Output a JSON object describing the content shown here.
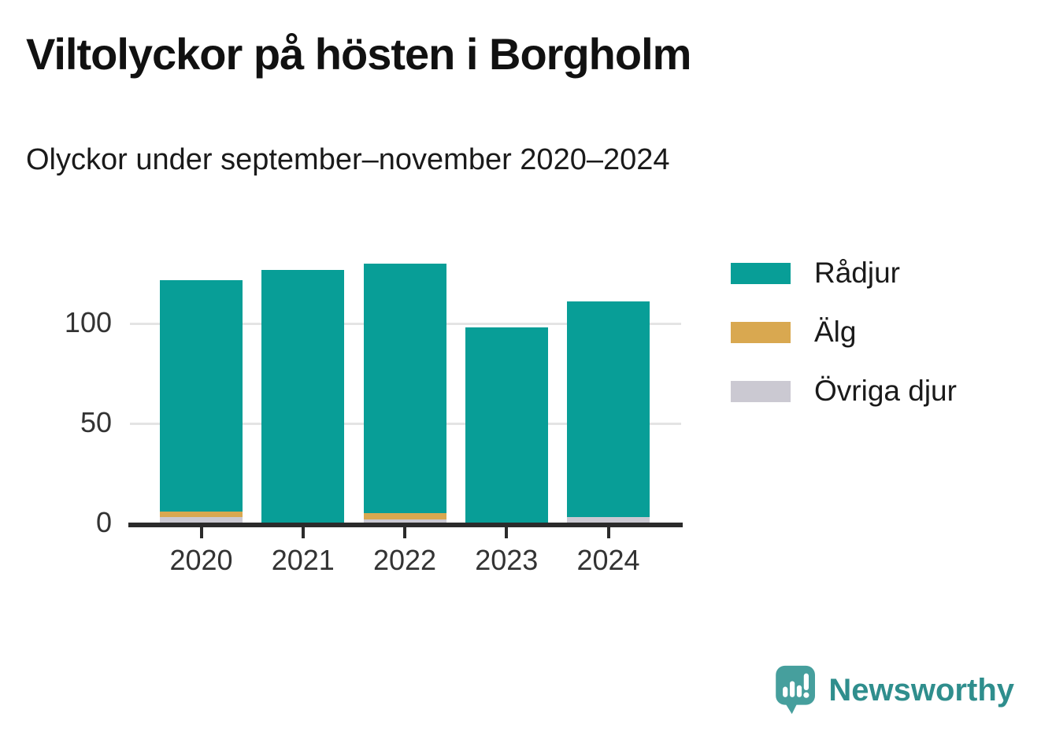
{
  "header": {
    "title": "Viltolyckor på hösten i Borgholm",
    "subtitle": "Olyckor under september–november 2020–2024"
  },
  "chart_data": {
    "type": "bar",
    "stacked": true,
    "title": "Viltolyckor på hösten i Borgholm",
    "subtitle": "Olyckor under september–november 2020–2024",
    "categories": [
      "2020",
      "2021",
      "2022",
      "2023",
      "2024"
    ],
    "series": [
      {
        "name": "Rådjur",
        "color": "#089e97",
        "values": [
          116,
          127,
          125,
          98,
          108
        ]
      },
      {
        "name": "Älg",
        "color": "#d9a850",
        "values": [
          3,
          0,
          3,
          0,
          0
        ]
      },
      {
        "name": "Övriga djur",
        "color": "#cbc9d2",
        "values": [
          3,
          0,
          2,
          0,
          3
        ]
      }
    ],
    "totals": [
      122,
      127,
      130,
      98,
      111
    ],
    "stack_order_bottom_to_top": [
      "Övriga djur",
      "Älg",
      "Rådjur"
    ],
    "yticks": [
      0,
      50,
      100
    ],
    "ylim": [
      0,
      136
    ],
    "xlabel": "",
    "ylabel": "",
    "grid": "horizontal",
    "legend_position": "right",
    "colors": {
      "axis": "#2b2b2b",
      "gridline": "#e4e4e4",
      "text": "#1a1a1a",
      "axis_text": "#333333"
    }
  },
  "footer": {
    "brand": "Newsworthy",
    "brand_color": "#2f8e8d",
    "logo_color": "#469f9d"
  }
}
